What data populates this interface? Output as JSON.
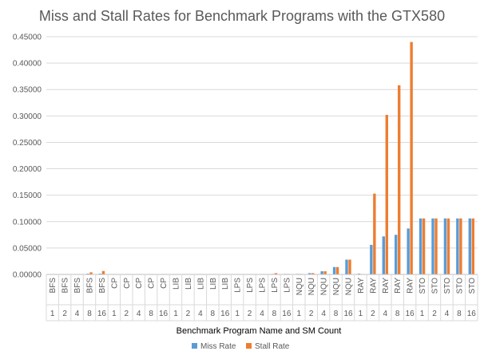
{
  "chart_data": {
    "type": "bar",
    "title": "Miss and Stall Rates for Benchmark Programs with the GTX580",
    "xlabel": "Benchmark Program Name and SM Count",
    "ylabel": "",
    "ylim": [
      0,
      0.45
    ],
    "yticks": [
      "0.00000",
      "0.05000",
      "0.10000",
      "0.15000",
      "0.20000",
      "0.25000",
      "0.30000",
      "0.35000",
      "0.40000",
      "0.45000"
    ],
    "categories": [
      {
        "program": "BFS",
        "sm": "1"
      },
      {
        "program": "BFS",
        "sm": "2"
      },
      {
        "program": "BFS",
        "sm": "4"
      },
      {
        "program": "BFS",
        "sm": "8"
      },
      {
        "program": "BFS",
        "sm": "16"
      },
      {
        "program": "CP",
        "sm": "1"
      },
      {
        "program": "CP",
        "sm": "2"
      },
      {
        "program": "CP",
        "sm": "4"
      },
      {
        "program": "CP",
        "sm": "8"
      },
      {
        "program": "CP",
        "sm": "16"
      },
      {
        "program": "LIB",
        "sm": "1"
      },
      {
        "program": "LIB",
        "sm": "2"
      },
      {
        "program": "LIB",
        "sm": "4"
      },
      {
        "program": "LIB",
        "sm": "8"
      },
      {
        "program": "LIB",
        "sm": "16"
      },
      {
        "program": "LPS",
        "sm": "1"
      },
      {
        "program": "LPS",
        "sm": "2"
      },
      {
        "program": "LPS",
        "sm": "4"
      },
      {
        "program": "LPS",
        "sm": "8"
      },
      {
        "program": "LPS",
        "sm": "16"
      },
      {
        "program": "NQU",
        "sm": "1"
      },
      {
        "program": "NQU",
        "sm": "2"
      },
      {
        "program": "NQU",
        "sm": "4"
      },
      {
        "program": "NQU",
        "sm": "8"
      },
      {
        "program": "NQU",
        "sm": "16"
      },
      {
        "program": "RAY",
        "sm": "1"
      },
      {
        "program": "RAY",
        "sm": "2"
      },
      {
        "program": "RAY",
        "sm": "4"
      },
      {
        "program": "RAY",
        "sm": "8"
      },
      {
        "program": "RAY",
        "sm": "16"
      },
      {
        "program": "STO",
        "sm": "1"
      },
      {
        "program": "STO",
        "sm": "2"
      },
      {
        "program": "STO",
        "sm": "4"
      },
      {
        "program": "STO",
        "sm": "8"
      },
      {
        "program": "STO",
        "sm": "16"
      }
    ],
    "series": [
      {
        "name": "Miss Rate",
        "color": "#5B9BD5",
        "values": [
          0.0008,
          0.0008,
          0.0008,
          0.0015,
          0.0015,
          0.0008,
          0.0008,
          0.0008,
          0.0008,
          0.0008,
          0.0008,
          0.0008,
          0.0008,
          0.0008,
          0.0008,
          0.0008,
          0.0008,
          0.0008,
          0.001,
          0.001,
          0.001,
          0.0025,
          0.006,
          0.014,
          0.028,
          0.0015,
          0.056,
          0.072,
          0.075,
          0.087,
          0.106,
          0.106,
          0.106,
          0.106,
          0.106
        ]
      },
      {
        "name": "Stall Rate",
        "color": "#ED7D31",
        "values": [
          0.0008,
          0.0008,
          0.0008,
          0.004,
          0.0065,
          0.0008,
          0.0008,
          0.0008,
          0.0008,
          0.0008,
          0.0008,
          0.0008,
          0.0008,
          0.0008,
          0.0008,
          0.0008,
          0.0008,
          0.0008,
          0.0025,
          0.001,
          0.001,
          0.0025,
          0.006,
          0.014,
          0.028,
          0.0008,
          0.153,
          0.302,
          0.358,
          0.44,
          0.106,
          0.106,
          0.106,
          0.106,
          0.106
        ]
      }
    ],
    "grid": true,
    "legend": "bottom-center"
  }
}
